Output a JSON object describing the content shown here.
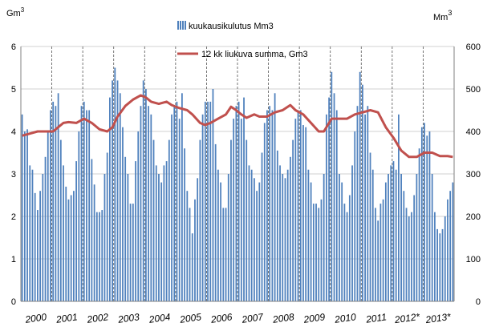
{
  "chart_data": {
    "type": "bar",
    "title": "",
    "left_axis": {
      "unit_base": "Gm",
      "unit_sup": "3",
      "ylim": [
        0,
        6
      ],
      "ticks": [
        "0",
        "1",
        "2",
        "3",
        "4",
        "5",
        "6"
      ]
    },
    "right_axis": {
      "unit_base": "Mm",
      "unit_sup": "3",
      "ylim": [
        0,
        600
      ],
      "ticks": [
        "0",
        "100",
        "200",
        "300",
        "400",
        "500",
        "600"
      ]
    },
    "x": {
      "start_year": 2000,
      "months": 168,
      "year_labels": [
        "2000",
        "2001",
        "2002",
        "2003",
        "2004",
        "2005",
        "2006",
        "2007",
        "2008",
        "2009",
        "2010",
        "2011",
        "2012*",
        "2013*"
      ]
    },
    "grid": {
      "horizontal": true,
      "year_dividers": "dashed"
    },
    "legend": {
      "placement": "top-center",
      "items": [
        {
          "label": "kuukausikulutus Mm3",
          "kind": "bar"
        },
        {
          "label": "12 kk liukuva summa,  Gm3",
          "kind": "line"
        }
      ]
    },
    "series": [
      {
        "name": "kuukausikulutus Mm3",
        "axis": "right",
        "color": "#4f81bd",
        "values": [
          440,
          400,
          405,
          320,
          310,
          255,
          215,
          260,
          300,
          340,
          400,
          450,
          470,
          460,
          490,
          380,
          320,
          270,
          240,
          250,
          260,
          330,
          400,
          460,
          470,
          450,
          450,
          335,
          275,
          210,
          210,
          215,
          300,
          350,
          480,
          520,
          550,
          520,
          490,
          410,
          340,
          300,
          230,
          230,
          330,
          400,
          460,
          520,
          500,
          460,
          440,
          380,
          320,
          300,
          280,
          320,
          330,
          380,
          440,
          460,
          470,
          430,
          490,
          360,
          260,
          220,
          160,
          240,
          290,
          380,
          440,
          470,
          470,
          470,
          500,
          370,
          310,
          280,
          220,
          220,
          300,
          380,
          430,
          460,
          470,
          430,
          480,
          380,
          320,
          310,
          290,
          260,
          280,
          350,
          420,
          450,
          460,
          450,
          490,
          355,
          320,
          300,
          290,
          310,
          340,
          380,
          430,
          450,
          450,
          415,
          410,
          310,
          280,
          230,
          230,
          220,
          240,
          300,
          440,
          480,
          540,
          490,
          450,
          300,
          280,
          230,
          210,
          250,
          320,
          400,
          460,
          540,
          510,
          440,
          460,
          350,
          310,
          220,
          190,
          230,
          240,
          280,
          300,
          320,
          330,
          310,
          440,
          300,
          260,
          220,
          200,
          210,
          250,
          300,
          360,
          410,
          420,
          390,
          400,
          300,
          210,
          170,
          160,
          170,
          200,
          240,
          260,
          280
        ]
      },
      {
        "name": "12 kk liukuva summa,  Gm3",
        "axis": "left",
        "color": "#c0504d",
        "points": [
          [
            0,
            3.9
          ],
          [
            3,
            3.95
          ],
          [
            6,
            4.0
          ],
          [
            9,
            4.0
          ],
          [
            12,
            4.0
          ],
          [
            14,
            4.1
          ],
          [
            16,
            4.2
          ],
          [
            18,
            4.22
          ],
          [
            21,
            4.2
          ],
          [
            24,
            4.3
          ],
          [
            27,
            4.2
          ],
          [
            30,
            4.05
          ],
          [
            33,
            4.0
          ],
          [
            35,
            4.1
          ],
          [
            37,
            4.35
          ],
          [
            40,
            4.6
          ],
          [
            43,
            4.75
          ],
          [
            46,
            4.85
          ],
          [
            48,
            4.8
          ],
          [
            50,
            4.7
          ],
          [
            53,
            4.65
          ],
          [
            56,
            4.7
          ],
          [
            58,
            4.62
          ],
          [
            61,
            4.55
          ],
          [
            64,
            4.5
          ],
          [
            66,
            4.4
          ],
          [
            69,
            4.2
          ],
          [
            71,
            4.15
          ],
          [
            73,
            4.2
          ],
          [
            76,
            4.3
          ],
          [
            79,
            4.4
          ],
          [
            81,
            4.58
          ],
          [
            83,
            4.5
          ],
          [
            85,
            4.4
          ],
          [
            87,
            4.32
          ],
          [
            90,
            4.4
          ],
          [
            92,
            4.35
          ],
          [
            95,
            4.35
          ],
          [
            98,
            4.45
          ],
          [
            101,
            4.5
          ],
          [
            104,
            4.62
          ],
          [
            106,
            4.5
          ],
          [
            109,
            4.4
          ],
          [
            112,
            4.2
          ],
          [
            115,
            4.0
          ],
          [
            117,
            4.0
          ],
          [
            120,
            4.3
          ],
          [
            123,
            4.3
          ],
          [
            126,
            4.3
          ],
          [
            129,
            4.4
          ],
          [
            132,
            4.45
          ],
          [
            135,
            4.5
          ],
          [
            138,
            4.45
          ],
          [
            141,
            4.1
          ],
          [
            144,
            3.85
          ],
          [
            147,
            3.55
          ],
          [
            150,
            3.4
          ],
          [
            153,
            3.4
          ],
          [
            156,
            3.5
          ],
          [
            159,
            3.5
          ],
          [
            162,
            3.42
          ],
          [
            165,
            3.42
          ],
          [
            167,
            3.4
          ]
        ]
      }
    ]
  }
}
